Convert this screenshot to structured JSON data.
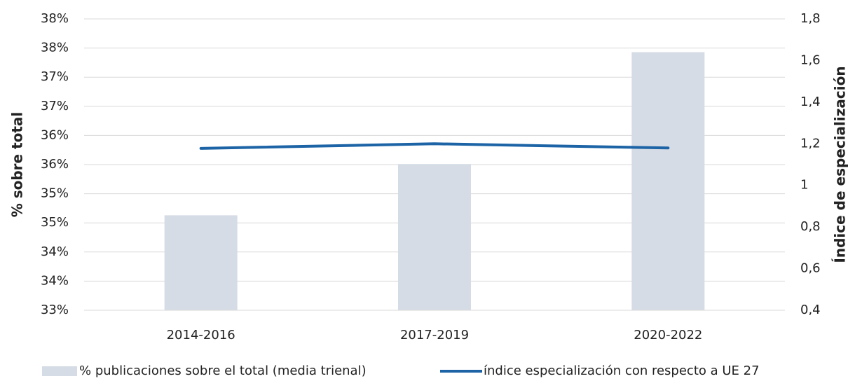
{
  "chart_data": {
    "type": "bar_line",
    "categories": [
      "2014-2016",
      "2017-2019",
      "2020-2022"
    ],
    "series": [
      {
        "name": "% publicaciones sobre el total (media trienal)",
        "type": "bar",
        "color": "#d6dce5",
        "values": [
          34.63,
          35.51,
          37.43
        ]
      },
      {
        "name": "índice especialización con respecto a UE 27",
        "type": "line",
        "axis": "y2",
        "color": "#1c64a6",
        "values": [
          1.178,
          1.2,
          1.18
        ]
      }
    ],
    "ylabel": "% sobre total",
    "y2label": "Índice de especialización",
    "ylim": [
      33,
      38
    ],
    "yticks": [
      {
        "value": 33,
        "label": "33%"
      },
      {
        "value": 33.5,
        "label": "34%"
      },
      {
        "value": 34,
        "label": "34%"
      },
      {
        "value": 34.5,
        "label": "35%"
      },
      {
        "value": 35,
        "label": "35%"
      },
      {
        "value": 35.5,
        "label": "36%"
      },
      {
        "value": 36,
        "label": "36%"
      },
      {
        "value": 36.5,
        "label": "37%"
      },
      {
        "value": 37,
        "label": "37%"
      },
      {
        "value": 37.5,
        "label": "38%"
      },
      {
        "value": 38,
        "label": "38%"
      }
    ],
    "y2lim": [
      0.4,
      1.8
    ],
    "y2ticks": [
      {
        "value": 0.4,
        "label": "0,4"
      },
      {
        "value": 0.6,
        "label": "0,6"
      },
      {
        "value": 0.8,
        "label": "0,8"
      },
      1,
      {
        "value": 1.2,
        "label": "1,2"
      },
      {
        "value": 1.4,
        "label": "1,4"
      },
      {
        "value": 1.6,
        "label": "1,6"
      },
      {
        "value": 1.8,
        "label": "1,8"
      }
    ],
    "grid": true,
    "legend": "bottom"
  }
}
